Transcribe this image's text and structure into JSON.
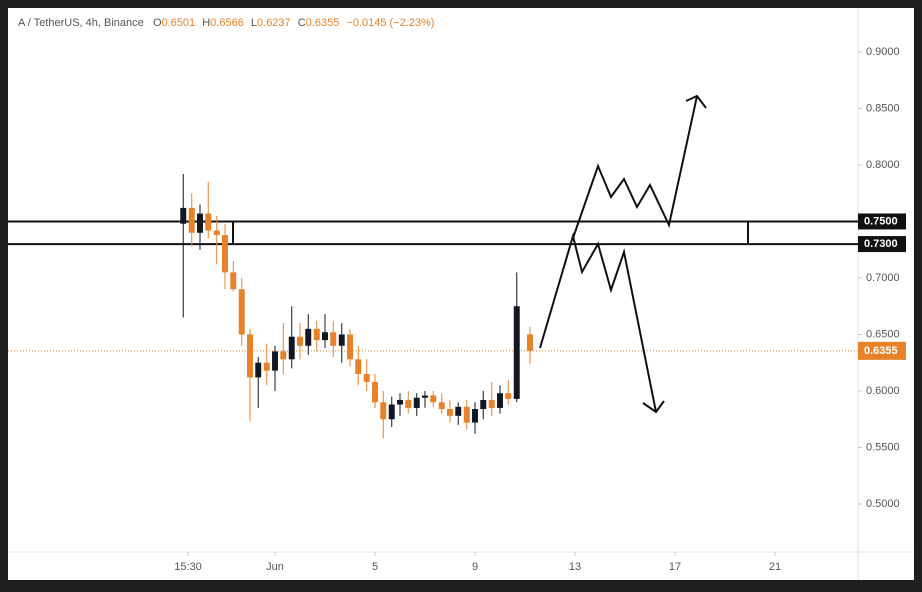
{
  "header": {
    "symbol": "A / TetherUS, 4h, Binance",
    "o_label": "O",
    "h_label": "H",
    "l_label": "L",
    "c_label": "C",
    "change": "−0.0145 (−2.23%)"
  },
  "chart_data": {
    "type": "candlestick",
    "x": [
      -2.67,
      -2.33,
      -2.0,
      -1.67,
      -1.33,
      -1.0,
      -0.67,
      -0.33,
      0.0,
      0.33,
      0.67,
      1.0,
      1.33,
      1.67,
      2.0,
      2.33,
      2.67,
      3.0,
      3.33,
      3.67,
      4.0,
      4.33,
      4.67,
      5.0,
      5.33,
      5.67,
      6.0,
      6.33,
      6.67,
      7.0,
      7.33,
      7.67,
      8.0,
      8.33,
      8.67,
      9.0,
      9.33,
      9.67,
      10.0,
      10.33,
      10.67,
      11.2
    ],
    "open": [
      0.748,
      0.762,
      0.74,
      0.757,
      0.742,
      0.738,
      0.705,
      0.69,
      0.65,
      0.612,
      0.625,
      0.618,
      0.635,
      0.628,
      0.648,
      0.64,
      0.655,
      0.645,
      0.652,
      0.64,
      0.65,
      0.628,
      0.615,
      0.608,
      0.59,
      0.575,
      0.588,
      0.592,
      0.585,
      0.594,
      0.596,
      0.59,
      0.584,
      0.578,
      0.586,
      0.572,
      0.584,
      0.592,
      0.585,
      0.598,
      0.593,
      0.6501
    ],
    "high": [
      0.792,
      0.775,
      0.765,
      0.785,
      0.755,
      0.748,
      0.715,
      0.7,
      0.655,
      0.63,
      0.642,
      0.64,
      0.66,
      0.675,
      0.66,
      0.668,
      0.662,
      0.668,
      0.662,
      0.66,
      0.655,
      0.64,
      0.628,
      0.615,
      0.6,
      0.595,
      0.598,
      0.6,
      0.598,
      0.6,
      0.6,
      0.598,
      0.592,
      0.59,
      0.592,
      0.59,
      0.6,
      0.608,
      0.605,
      0.61,
      0.705,
      0.6566
    ],
    "low": [
      0.665,
      0.728,
      0.725,
      0.735,
      0.712,
      0.69,
      0.688,
      0.64,
      0.573,
      0.585,
      0.605,
      0.6,
      0.615,
      0.62,
      0.628,
      0.632,
      0.635,
      0.638,
      0.63,
      0.625,
      0.622,
      0.605,
      0.6,
      0.585,
      0.558,
      0.568,
      0.578,
      0.58,
      0.578,
      0.585,
      0.586,
      0.58,
      0.572,
      0.57,
      0.566,
      0.562,
      0.575,
      0.578,
      0.58,
      0.588,
      0.59,
      0.6237
    ],
    "close": [
      0.762,
      0.74,
      0.757,
      0.742,
      0.738,
      0.705,
      0.69,
      0.65,
      0.612,
      0.625,
      0.618,
      0.635,
      0.628,
      0.648,
      0.64,
      0.655,
      0.645,
      0.652,
      0.64,
      0.65,
      0.628,
      0.615,
      0.608,
      0.59,
      0.575,
      0.588,
      0.592,
      0.585,
      0.594,
      0.596,
      0.59,
      0.584,
      0.578,
      0.586,
      0.572,
      0.584,
      0.592,
      0.585,
      0.598,
      0.593,
      0.675,
      0.6355
    ],
    "up_color": "#131722",
    "down_color": "#e8822a",
    "xlim": [
      -9.68,
      24.32
    ],
    "xticks": [
      {
        "value": -2.48,
        "label": "15:30"
      },
      {
        "value": 1,
        "label": "Jun"
      },
      5,
      9,
      13,
      17,
      21
    ],
    "ylim": [
      0.4575,
      0.9389
    ],
    "yticks": [
      {
        "value": 0.5,
        "label": "0.5000"
      },
      {
        "value": 0.55,
        "label": "0.5500"
      },
      {
        "value": 0.6,
        "label": "0.6000"
      },
      {
        "value": 0.65,
        "label": "0.6500"
      },
      {
        "value": 0.7,
        "label": "0.7000"
      },
      {
        "value": 0.75,
        "label": "0.7500"
      },
      {
        "value": 0.8,
        "label": "0.8000"
      },
      {
        "value": 0.85,
        "label": "0.8500"
      },
      {
        "value": 0.9,
        "label": "0.9000"
      }
    ],
    "levels": [
      {
        "value": 0.75,
        "label": "0.7500"
      },
      {
        "value": 0.73,
        "label": "0.7300"
      }
    ],
    "price_line": {
      "value": 0.6355,
      "label": "0.6355",
      "color": "#e8822a"
    }
  }
}
